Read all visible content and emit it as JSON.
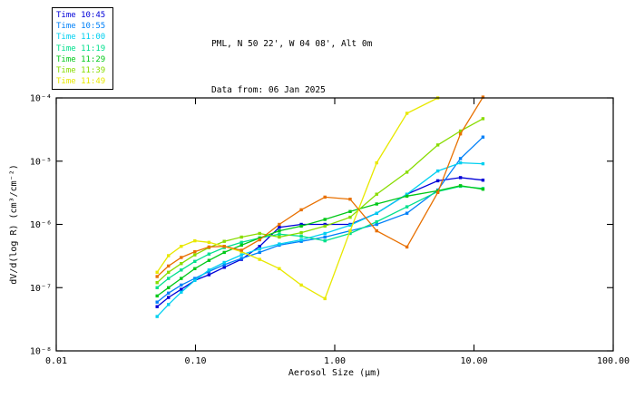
{
  "header": {
    "title_line1": "PML, N 50 22', W 04 08', Alt 0m",
    "title_line2": "Data from: 06 Jan 2025"
  },
  "legend": {
    "position": "top-left",
    "items": [
      {
        "label": "Time 10:45",
        "color": "#0000d8"
      },
      {
        "label": "Time 10:55",
        "color": "#0080f8"
      },
      {
        "label": "Time 11:00",
        "color": "#00d0f0"
      },
      {
        "label": "Time 11:19",
        "color": "#00e08c"
      },
      {
        "label": "Time 11:29",
        "color": "#00c818"
      },
      {
        "label": "Time 11:39",
        "color": "#88dc00"
      },
      {
        "label": "Time 11:49",
        "color": "#e8e800"
      }
    ]
  },
  "chart_data": {
    "type": "line",
    "title": "PML, N 50 22', W 04 08', Alt 0m",
    "subtitle": "Data from: 06 Jan 2025",
    "xlabel": "Aerosol Size (μm)",
    "ylabel": "dV/d(log R) (cm³/cm⁻²)",
    "x_scale": "log",
    "y_scale": "log",
    "xlim": [
      0.01,
      100
    ],
    "ylim": [
      1e-08,
      0.0001
    ],
    "x_ticks": [
      0.01,
      0.1,
      1,
      10,
      100
    ],
    "x_tick_labels": [
      "0.01",
      "0.10",
      "1.00",
      "10.00",
      "100.00"
    ],
    "y_ticks": [
      0.0001,
      1e-05,
      1e-06,
      1e-07,
      1e-08
    ],
    "y_tick_labels": [
      "10⁻⁴",
      "10⁻⁵",
      "10⁻⁶",
      "10⁻⁷",
      "10⁻⁸"
    ],
    "grid": false,
    "marker": "square",
    "frame_color": "#000000",
    "sizes_um": [
      0.053,
      0.064,
      0.079,
      0.099,
      0.125,
      0.161,
      0.214,
      0.289,
      0.4,
      0.575,
      0.85,
      1.29,
      2.0,
      3.3,
      5.5,
      8.0,
      11.6
    ],
    "series": [
      {
        "name": "Time 10:45",
        "color": "#0000d8",
        "in_legend": true,
        "values": [
          5e-08,
          7e-08,
          9.4e-08,
          1.3e-07,
          1.6e-07,
          2.1e-07,
          2.8e-07,
          4.5e-07,
          9e-07,
          1e-06,
          1e-06,
          1e-06,
          1.5e-06,
          3e-06,
          4.9e-06,
          5.5e-06,
          5e-06
        ]
      },
      {
        "name": "Time 10:55",
        "color": "#0080f8",
        "in_legend": true,
        "values": [
          5.9e-08,
          8.2e-08,
          1.1e-07,
          1.4e-07,
          1.8e-07,
          2.3e-07,
          2.9e-07,
          3.6e-07,
          4.7e-07,
          5.4e-07,
          6.3e-07,
          7.9e-07,
          1e-06,
          1.5e-06,
          3.5e-06,
          1.1e-05,
          2.4e-05
        ]
      },
      {
        "name": "Time 11:00",
        "color": "#00d0f0",
        "in_legend": true,
        "values": [
          3.5e-08,
          5.4e-08,
          8.5e-08,
          1.3e-07,
          1.9e-07,
          2.5e-07,
          3.3e-07,
          4.1e-07,
          4.9e-07,
          5.7e-07,
          7.2e-07,
          9.7e-07,
          1.5e-06,
          3e-06,
          7e-06,
          9.4e-06,
          9.1e-06
        ]
      },
      {
        "name": "Time 11:19",
        "color": "#00e08c",
        "in_legend": true,
        "values": [
          1e-07,
          1.4e-07,
          1.9e-07,
          2.6e-07,
          3.4e-07,
          4.3e-07,
          5.2e-07,
          6.1e-07,
          7e-07,
          6.5e-07,
          5.5e-07,
          7.2e-07,
          1.1e-06,
          1.9e-06,
          3.3e-06,
          4e-06,
          3.7e-06
        ]
      },
      {
        "name": "Time 11:29",
        "color": "#00c818",
        "in_legend": true,
        "values": [
          7.4e-08,
          1e-07,
          1.4e-07,
          2e-07,
          2.7e-07,
          3.6e-07,
          4.7e-07,
          6.1e-07,
          7.9e-07,
          9.4e-07,
          1.2e-06,
          1.6e-06,
          2.1e-06,
          2.8e-06,
          3.4e-06,
          4.1e-06,
          3.6e-06
        ]
      },
      {
        "name": "Time 11:39",
        "color": "#88dc00",
        "in_legend": true,
        "values": [
          1.2e-07,
          1.75e-07,
          2.4e-07,
          3.3e-07,
          4.3e-07,
          5.4e-07,
          6.3e-07,
          7.2e-07,
          6.3e-07,
          7.4e-07,
          9.4e-07,
          1.3e-06,
          3e-06,
          6.7e-06,
          1.8e-05,
          3e-05,
          4.7e-05
        ]
      },
      {
        "name": "Time 11:49",
        "color": "#e8e800",
        "in_legend": true,
        "values": [
          1.75e-07,
          3.2e-07,
          4.5e-07,
          5.5e-07,
          5.2e-07,
          4.5e-07,
          3.7e-07,
          2.8e-07,
          2e-07,
          1.1e-07,
          6.7e-08,
          7.9e-07,
          9.4e-06,
          5.7e-05,
          0.0001,
          null,
          null
        ]
      },
      {
        "name": "",
        "color": "#e87000",
        "in_legend": false,
        "values": [
          1.5e-07,
          2.2e-07,
          3e-07,
          3.7e-07,
          4.4e-07,
          4.5e-07,
          3.9e-07,
          5.7e-07,
          1e-06,
          1.7e-06,
          2.7e-06,
          2.5e-06,
          7.9e-07,
          4.4e-07,
          3.2e-06,
          2.7e-05,
          0.000103
        ]
      }
    ]
  }
}
